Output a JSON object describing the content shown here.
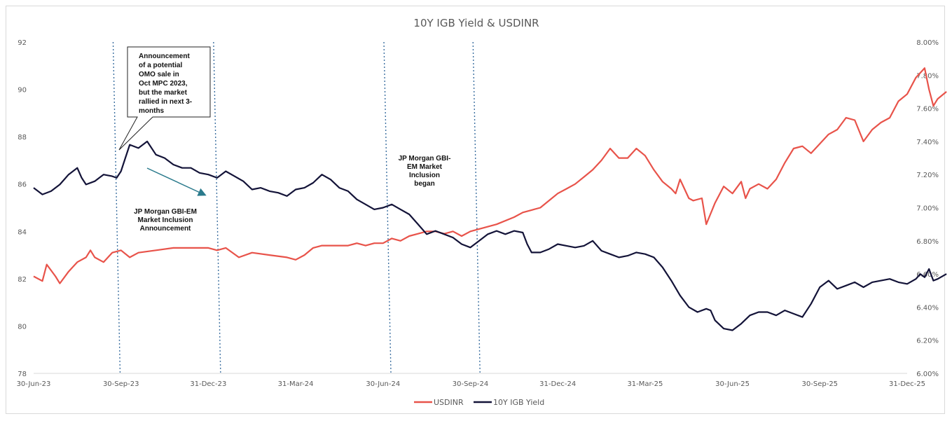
{
  "chart_data": {
    "type": "line",
    "title": "10Y IGB Yield & USDINR",
    "x_ticks": [
      "30-Jun-23",
      "30-Sep-23",
      "31-Dec-23",
      "31-Mar-24",
      "30-Jun-24",
      "30-Sep-24",
      "31-Dec-24",
      "31-Mar-25",
      "30-Jun-25",
      "30-Sep-25",
      "31-Dec-25"
    ],
    "x_range": [
      0,
      10
    ],
    "left_axis": {
      "ylim": [
        78,
        92
      ],
      "ticks": [
        "78",
        "80",
        "82",
        "84",
        "86",
        "88",
        "90",
        "92"
      ]
    },
    "right_axis": {
      "ylim": [
        6.0,
        8.0
      ],
      "ticks": [
        "6.00%",
        "6.20%",
        "6.40%",
        "6.60%",
        "6.80%",
        "7.00%",
        "7.20%",
        "7.40%",
        "7.60%",
        "7.80%",
        "8.00%"
      ]
    },
    "series": [
      {
        "name": "USDINR",
        "axis": "left",
        "color": "#e8534a",
        "points": [
          [
            0,
            82.1
          ],
          [
            0.1,
            81.9
          ],
          [
            0.15,
            82.6
          ],
          [
            0.25,
            82.1
          ],
          [
            0.3,
            81.8
          ],
          [
            0.4,
            82.3
          ],
          [
            0.5,
            82.7
          ],
          [
            0.6,
            82.9
          ],
          [
            0.65,
            83.2
          ],
          [
            0.7,
            82.9
          ],
          [
            0.8,
            82.7
          ],
          [
            0.9,
            83.1
          ],
          [
            1.0,
            83.2
          ],
          [
            1.1,
            82.9
          ],
          [
            1.2,
            83.1
          ],
          [
            1.4,
            83.2
          ],
          [
            1.6,
            83.3
          ],
          [
            1.8,
            83.3
          ],
          [
            2.0,
            83.3
          ],
          [
            2.1,
            83.2
          ],
          [
            2.2,
            83.3
          ],
          [
            2.35,
            82.9
          ],
          [
            2.5,
            83.1
          ],
          [
            2.7,
            83.0
          ],
          [
            2.9,
            82.9
          ],
          [
            3.0,
            82.8
          ],
          [
            3.1,
            83.0
          ],
          [
            3.2,
            83.3
          ],
          [
            3.3,
            83.4
          ],
          [
            3.5,
            83.4
          ],
          [
            3.6,
            83.4
          ],
          [
            3.7,
            83.5
          ],
          [
            3.8,
            83.4
          ],
          [
            3.9,
            83.5
          ],
          [
            4.0,
            83.5
          ],
          [
            4.1,
            83.7
          ],
          [
            4.2,
            83.6
          ],
          [
            4.3,
            83.8
          ],
          [
            4.4,
            83.9
          ],
          [
            4.5,
            84.0
          ],
          [
            4.6,
            84.0
          ],
          [
            4.7,
            83.9
          ],
          [
            4.8,
            84.0
          ],
          [
            4.9,
            83.8
          ],
          [
            5.0,
            84.0
          ],
          [
            5.1,
            84.1
          ],
          [
            5.3,
            84.3
          ],
          [
            5.5,
            84.6
          ],
          [
            5.6,
            84.8
          ],
          [
            5.7,
            84.9
          ],
          [
            5.8,
            85.0
          ],
          [
            5.9,
            85.3
          ],
          [
            6.0,
            85.6
          ],
          [
            6.1,
            85.8
          ],
          [
            6.2,
            86.0
          ],
          [
            6.3,
            86.3
          ],
          [
            6.4,
            86.6
          ],
          [
            6.5,
            87.0
          ],
          [
            6.6,
            87.5
          ],
          [
            6.7,
            87.1
          ],
          [
            6.8,
            87.1
          ],
          [
            6.9,
            87.5
          ],
          [
            7.0,
            87.2
          ],
          [
            7.1,
            86.6
          ],
          [
            7.2,
            86.1
          ],
          [
            7.3,
            85.8
          ],
          [
            7.35,
            85.6
          ],
          [
            7.4,
            86.2
          ],
          [
            7.5,
            85.4
          ],
          [
            7.55,
            85.3
          ],
          [
            7.65,
            85.4
          ],
          [
            7.7,
            84.3
          ],
          [
            7.8,
            85.2
          ],
          [
            7.9,
            85.9
          ],
          [
            8.0,
            85.6
          ],
          [
            8.1,
            86.1
          ],
          [
            8.15,
            85.4
          ],
          [
            8.2,
            85.8
          ],
          [
            8.3,
            86.0
          ],
          [
            8.4,
            85.8
          ],
          [
            8.5,
            86.2
          ],
          [
            8.6,
            86.9
          ],
          [
            8.7,
            87.5
          ],
          [
            8.8,
            87.6
          ],
          [
            8.9,
            87.3
          ],
          [
            9.0,
            87.7
          ],
          [
            9.1,
            88.1
          ],
          [
            9.2,
            88.3
          ],
          [
            9.3,
            88.8
          ],
          [
            9.4,
            88.7
          ],
          [
            9.5,
            87.8
          ],
          [
            9.6,
            88.3
          ],
          [
            9.7,
            88.6
          ],
          [
            9.8,
            88.8
          ],
          [
            9.9,
            89.5
          ],
          [
            10.0,
            89.8
          ],
          [
            10.1,
            90.5
          ],
          [
            10.2,
            90.9
          ],
          [
            10.25,
            90.0
          ],
          [
            10.3,
            89.3
          ],
          [
            10.35,
            89.6
          ],
          [
            10.45,
            89.9
          ]
        ]
      },
      {
        "name": "10Y IGB Yield",
        "axis": "right",
        "color": "#131338",
        "points": [
          [
            0,
            7.12
          ],
          [
            0.1,
            7.08
          ],
          [
            0.2,
            7.1
          ],
          [
            0.3,
            7.14
          ],
          [
            0.4,
            7.2
          ],
          [
            0.5,
            7.24
          ],
          [
            0.55,
            7.18
          ],
          [
            0.6,
            7.14
          ],
          [
            0.7,
            7.16
          ],
          [
            0.8,
            7.2
          ],
          [
            0.9,
            7.19
          ],
          [
            0.95,
            7.18
          ],
          [
            1.0,
            7.22
          ],
          [
            1.05,
            7.3
          ],
          [
            1.1,
            7.38
          ],
          [
            1.2,
            7.36
          ],
          [
            1.3,
            7.4
          ],
          [
            1.4,
            7.32
          ],
          [
            1.5,
            7.3
          ],
          [
            1.6,
            7.26
          ],
          [
            1.7,
            7.24
          ],
          [
            1.8,
            7.24
          ],
          [
            1.9,
            7.21
          ],
          [
            2.0,
            7.2
          ],
          [
            2.1,
            7.18
          ],
          [
            2.2,
            7.22
          ],
          [
            2.3,
            7.19
          ],
          [
            2.4,
            7.16
          ],
          [
            2.5,
            7.11
          ],
          [
            2.6,
            7.12
          ],
          [
            2.7,
            7.1
          ],
          [
            2.8,
            7.09
          ],
          [
            2.9,
            7.07
          ],
          [
            3.0,
            7.11
          ],
          [
            3.1,
            7.12
          ],
          [
            3.2,
            7.15
          ],
          [
            3.3,
            7.2
          ],
          [
            3.4,
            7.17
          ],
          [
            3.5,
            7.12
          ],
          [
            3.6,
            7.1
          ],
          [
            3.7,
            7.05
          ],
          [
            3.8,
            7.02
          ],
          [
            3.9,
            6.99
          ],
          [
            4.0,
            7.0
          ],
          [
            4.1,
            7.02
          ],
          [
            4.2,
            6.99
          ],
          [
            4.3,
            6.96
          ],
          [
            4.4,
            6.9
          ],
          [
            4.5,
            6.84
          ],
          [
            4.6,
            6.86
          ],
          [
            4.7,
            6.84
          ],
          [
            4.8,
            6.82
          ],
          [
            4.9,
            6.78
          ],
          [
            5.0,
            6.76
          ],
          [
            5.1,
            6.8
          ],
          [
            5.2,
            6.84
          ],
          [
            5.3,
            6.86
          ],
          [
            5.4,
            6.84
          ],
          [
            5.5,
            6.86
          ],
          [
            5.6,
            6.85
          ],
          [
            5.65,
            6.78
          ],
          [
            5.7,
            6.73
          ],
          [
            5.8,
            6.73
          ],
          [
            5.9,
            6.75
          ],
          [
            6.0,
            6.78
          ],
          [
            6.1,
            6.77
          ],
          [
            6.2,
            6.76
          ],
          [
            6.3,
            6.77
          ],
          [
            6.4,
            6.8
          ],
          [
            6.5,
            6.74
          ],
          [
            6.6,
            6.72
          ],
          [
            6.7,
            6.7
          ],
          [
            6.8,
            6.71
          ],
          [
            6.9,
            6.73
          ],
          [
            7.0,
            6.72
          ],
          [
            7.1,
            6.7
          ],
          [
            7.2,
            6.64
          ],
          [
            7.3,
            6.56
          ],
          [
            7.4,
            6.47
          ],
          [
            7.5,
            6.4
          ],
          [
            7.6,
            6.37
          ],
          [
            7.7,
            6.39
          ],
          [
            7.75,
            6.38
          ],
          [
            7.8,
            6.32
          ],
          [
            7.9,
            6.27
          ],
          [
            8.0,
            6.26
          ],
          [
            8.1,
            6.3
          ],
          [
            8.2,
            6.35
          ],
          [
            8.3,
            6.37
          ],
          [
            8.4,
            6.37
          ],
          [
            8.5,
            6.35
          ],
          [
            8.6,
            6.38
          ],
          [
            8.7,
            6.36
          ],
          [
            8.8,
            6.34
          ],
          [
            8.9,
            6.42
          ],
          [
            9.0,
            6.52
          ],
          [
            9.1,
            6.56
          ],
          [
            9.2,
            6.51
          ],
          [
            9.3,
            6.53
          ],
          [
            9.4,
            6.55
          ],
          [
            9.5,
            6.52
          ],
          [
            9.6,
            6.55
          ],
          [
            9.7,
            6.56
          ],
          [
            9.8,
            6.57
          ],
          [
            9.9,
            6.55
          ],
          [
            10.0,
            6.54
          ],
          [
            10.1,
            6.57
          ],
          [
            10.15,
            6.6
          ],
          [
            10.2,
            6.58
          ],
          [
            10.25,
            6.63
          ],
          [
            10.3,
            6.56
          ],
          [
            10.35,
            6.57
          ],
          [
            10.45,
            6.6
          ]
        ]
      }
    ],
    "vertical_lines": [
      0.95,
      2.1,
      4.05,
      5.07
    ],
    "annotations": [
      {
        "lines": [
          "Announcement",
          "of a potential",
          "OMO sale in",
          "Oct MPC 2023,",
          "but the market",
          "rallied in next 3-",
          "months"
        ]
      },
      {
        "lines": [
          "JP Morgan GBI-EM",
          "Market Inclusion",
          "Announcement"
        ]
      },
      {
        "lines": [
          "JP Morgan GBI-",
          "EM Market",
          "Inclusion",
          "began"
        ]
      }
    ],
    "legend_position": "bottom"
  }
}
